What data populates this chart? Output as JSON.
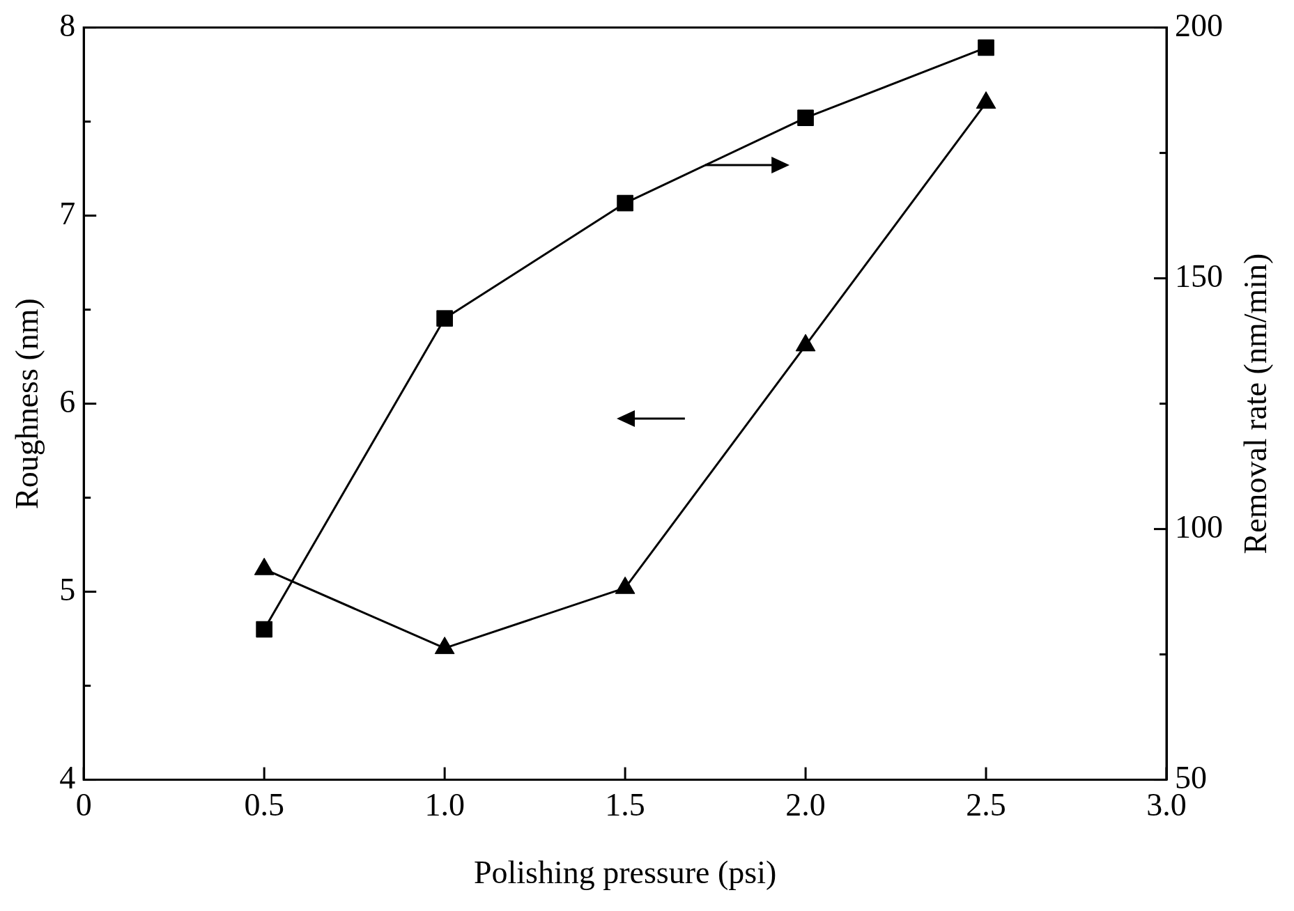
{
  "chart_data": {
    "type": "line",
    "xlabel": "Polishing pressure (psi)",
    "ylabel": "Roughness (nm)",
    "y2label": "Removal rate (nm/min)",
    "x": [
      0.5,
      1.0,
      1.5,
      2.0,
      2.5
    ],
    "series": [
      {
        "color": "#000000",
        "marker": "triangle",
        "values": [
          5.12,
          4.7,
          5.02,
          6.31,
          7.6
        ]
      },
      {
        "color": "#000000",
        "marker": "square",
        "axis": "y2",
        "values": [
          80,
          142,
          165,
          182,
          196
        ]
      }
    ],
    "xlim": [
      0,
      3
    ],
    "xticks": [
      0,
      0.5,
      {
        "value": 1,
        "label": "1.0"
      },
      1.5,
      {
        "value": 2,
        "label": "2.0"
      },
      2.5,
      {
        "value": 3,
        "label": "3.0"
      }
    ],
    "ylim": [
      4,
      8
    ],
    "yticks": [
      4,
      {
        "value": 4.5,
        "label": null
      },
      5,
      {
        "value": 5.5,
        "label": null
      },
      6,
      {
        "value": 6.5,
        "label": null
      },
      7,
      {
        "value": 7.5,
        "label": null
      },
      8
    ],
    "y2lim": [
      50,
      200
    ],
    "y2ticks": [
      50,
      {
        "value": 75,
        "label": null
      },
      100,
      {
        "value": 125,
        "label": null
      },
      150,
      {
        "value": 175,
        "label": null
      },
      200
    ],
    "legend": false,
    "grid": false,
    "line_style": "solid"
  }
}
